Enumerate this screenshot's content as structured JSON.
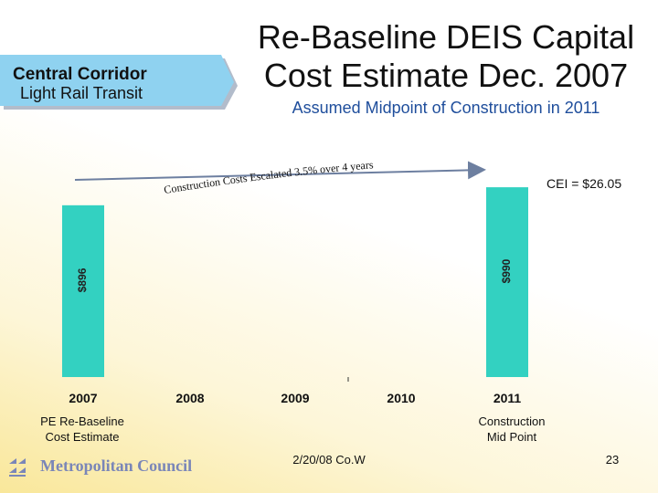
{
  "header": {
    "banner_line1": "Central Corridor",
    "banner_line2": "Light Rail Transit",
    "title_line1": "Re-Baseline DEIS Capital",
    "title_line2": "Cost Estimate Dec. 2007",
    "subtitle": "Assumed Midpoint of Construction in 2011"
  },
  "annotations": {
    "cei": "CEI = $26.05",
    "pe_line1": "PE Re-Baseline",
    "pe_line2": "Cost Estimate",
    "mid_line1": "Construction",
    "mid_line2": "Mid Point"
  },
  "footer": {
    "logo": "Metropolitan Council",
    "date": "2/20/08 Co.W",
    "page": "23"
  },
  "colors": {
    "bar": "#33d1c1",
    "banner": "#8fd2f0",
    "arrow": "#6d7fa0"
  },
  "chart_data": {
    "type": "bar",
    "title": "Re-Baseline DEIS Capital Cost Estimate Dec. 2007",
    "categories": [
      "2007",
      "2008",
      "2009",
      "2010",
      "2011"
    ],
    "values": [
      896,
      null,
      null,
      null,
      990
    ],
    "data_labels": [
      "$896",
      "",
      "",
      "",
      "$990"
    ],
    "ylim": [
      0,
      1000
    ],
    "xlabel": "",
    "ylabel": "",
    "arrow_annotation": "Construction Costs Escalated 3.5% over 4 years",
    "arrow_from": "2007",
    "arrow_to": "2011"
  }
}
